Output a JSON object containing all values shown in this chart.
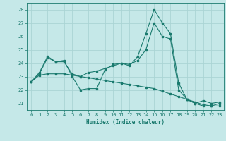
{
  "xlabel": "Humidex (Indice chaleur)",
  "xlim": [
    -0.5,
    23.5
  ],
  "ylim": [
    20.5,
    28.5
  ],
  "yticks": [
    21,
    22,
    23,
    24,
    25,
    26,
    27,
    28
  ],
  "xticks": [
    0,
    1,
    2,
    3,
    4,
    5,
    6,
    7,
    8,
    9,
    10,
    11,
    12,
    13,
    14,
    15,
    16,
    17,
    18,
    19,
    20,
    21,
    22,
    23
  ],
  "background_color": "#c5e8e8",
  "grid_color": "#aad4d4",
  "line_color": "#1a7a6e",
  "line1_x": [
    0,
    1,
    2,
    3,
    4,
    5,
    6,
    7,
    8,
    9,
    10,
    11,
    12,
    13,
    14,
    15,
    16,
    17,
    18,
    19,
    20,
    21,
    22,
    23
  ],
  "line1_y": [
    22.6,
    23.3,
    24.5,
    24.1,
    24.2,
    23.0,
    22.0,
    22.1,
    22.1,
    23.5,
    23.9,
    24.0,
    23.8,
    24.5,
    26.2,
    28.0,
    27.0,
    26.2,
    22.5,
    21.3,
    21.0,
    20.8,
    20.8,
    21.0
  ],
  "line2_x": [
    0,
    1,
    2,
    3,
    4,
    5,
    6,
    7,
    8,
    9,
    10,
    11,
    12,
    13,
    14,
    15,
    16,
    17,
    18,
    19,
    20,
    21,
    22,
    23
  ],
  "line2_y": [
    22.6,
    23.2,
    24.4,
    24.1,
    24.1,
    23.2,
    23.0,
    23.3,
    23.4,
    23.6,
    23.8,
    24.0,
    23.9,
    24.2,
    25.0,
    27.0,
    26.0,
    25.8,
    22.0,
    21.3,
    21.0,
    21.2,
    21.0,
    21.1
  ],
  "line3_x": [
    0,
    1,
    2,
    3,
    4,
    5,
    6,
    7,
    8,
    9,
    10,
    11,
    12,
    13,
    14,
    15,
    16,
    17,
    18,
    19,
    20,
    21,
    22,
    23
  ],
  "line3_y": [
    22.6,
    23.1,
    23.2,
    23.2,
    23.2,
    23.1,
    23.0,
    22.9,
    22.8,
    22.7,
    22.6,
    22.5,
    22.4,
    22.3,
    22.2,
    22.1,
    21.9,
    21.7,
    21.5,
    21.3,
    21.1,
    20.9,
    20.8,
    20.8
  ]
}
